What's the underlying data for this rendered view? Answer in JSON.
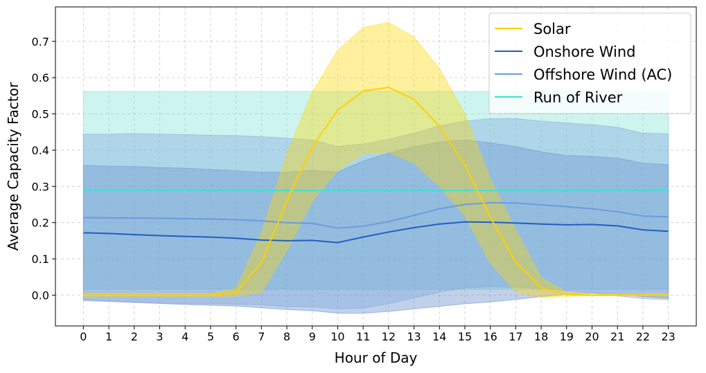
{
  "chart_data": {
    "type": "line",
    "xlabel": "Hour of Day",
    "ylabel": "Average Capacity Factor",
    "xlim": [
      -1.1,
      24.1
    ],
    "ylim": [
      -0.085,
      0.795
    ],
    "x": [
      0,
      1,
      2,
      3,
      4,
      5,
      6,
      7,
      8,
      9,
      10,
      11,
      12,
      13,
      14,
      15,
      16,
      17,
      18,
      19,
      20,
      21,
      22,
      23
    ],
    "yticks": [
      0.0,
      0.1,
      0.2,
      0.3,
      0.4,
      0.5,
      0.6,
      0.7
    ],
    "ytick_labels": [
      "0.0",
      "0.1",
      "0.2",
      "0.3",
      "0.4",
      "0.5",
      "0.6",
      "0.7"
    ],
    "grid": true,
    "legend_position": "top-right",
    "series": [
      {
        "name": "Solar",
        "color": "#FFD000",
        "band_color": "#FFD700",
        "values": [
          0.0,
          0.0,
          0.0,
          0.0,
          0.0,
          0.0,
          0.007,
          0.09,
          0.26,
          0.41,
          0.51,
          0.563,
          0.573,
          0.54,
          0.465,
          0.36,
          0.215,
          0.092,
          0.02,
          0.002,
          0.0,
          0.0,
          0.0,
          0.0
        ],
        "upper": [
          0.005,
          0.005,
          0.005,
          0.005,
          0.005,
          0.005,
          0.018,
          0.17,
          0.39,
          0.56,
          0.675,
          0.738,
          0.752,
          0.712,
          0.625,
          0.5,
          0.32,
          0.18,
          0.048,
          0.008,
          0.003,
          0.003,
          0.003,
          0.003
        ],
        "lower": [
          -0.003,
          -0.003,
          -0.003,
          -0.003,
          -0.003,
          -0.003,
          -0.003,
          0.008,
          0.125,
          0.26,
          0.345,
          0.39,
          0.395,
          0.365,
          0.3,
          0.22,
          0.09,
          0.01,
          -0.006,
          -0.003,
          -0.002,
          -0.002,
          -0.002,
          -0.002
        ]
      },
      {
        "name": "Onshore Wind",
        "color": "#1F5FBF",
        "band_color": "#5B86C8",
        "values": [
          0.172,
          0.17,
          0.167,
          0.164,
          0.162,
          0.16,
          0.157,
          0.152,
          0.15,
          0.151,
          0.145,
          0.16,
          0.174,
          0.186,
          0.196,
          0.202,
          0.201,
          0.199,
          0.196,
          0.194,
          0.195,
          0.191,
          0.18,
          0.176
        ],
        "upper": [
          0.358,
          0.356,
          0.355,
          0.352,
          0.35,
          0.347,
          0.343,
          0.339,
          0.339,
          0.344,
          0.34,
          0.37,
          0.392,
          0.41,
          0.422,
          0.428,
          0.42,
          0.41,
          0.395,
          0.385,
          0.383,
          0.378,
          0.364,
          0.36
        ],
        "lower": [
          -0.013,
          -0.016,
          -0.02,
          -0.023,
          -0.026,
          -0.028,
          -0.03,
          -0.035,
          -0.04,
          -0.043,
          -0.05,
          -0.05,
          -0.045,
          -0.038,
          -0.031,
          -0.024,
          -0.019,
          -0.012,
          -0.004,
          0.002,
          0.006,
          0.004,
          -0.004,
          -0.009
        ]
      },
      {
        "name": "Offshore Wind (AC)",
        "color": "#6A9AE0",
        "band_color": "#7FA6DE",
        "values": [
          0.214,
          0.213,
          0.213,
          0.212,
          0.211,
          0.21,
          0.208,
          0.205,
          0.2,
          0.198,
          0.185,
          0.19,
          0.203,
          0.22,
          0.238,
          0.25,
          0.255,
          0.254,
          0.249,
          0.244,
          0.238,
          0.23,
          0.218,
          0.216
        ],
        "upper": [
          0.444,
          0.444,
          0.446,
          0.444,
          0.443,
          0.441,
          0.44,
          0.437,
          0.433,
          0.428,
          0.41,
          0.417,
          0.43,
          0.447,
          0.467,
          0.48,
          0.487,
          0.487,
          0.48,
          0.475,
          0.47,
          0.463,
          0.447,
          0.445
        ],
        "lower": [
          -0.015,
          -0.018,
          -0.02,
          -0.022,
          -0.023,
          -0.024,
          -0.025,
          -0.027,
          -0.032,
          -0.032,
          -0.038,
          -0.036,
          -0.024,
          -0.008,
          0.008,
          0.02,
          0.023,
          0.022,
          0.018,
          0.012,
          0.006,
          -0.002,
          -0.01,
          -0.013
        ]
      },
      {
        "name": "Run of River",
        "color": "#40E0D0",
        "band_color": "#7FE3D6",
        "values": [
          0.289,
          0.289,
          0.289,
          0.289,
          0.289,
          0.289,
          0.289,
          0.289,
          0.289,
          0.289,
          0.289,
          0.289,
          0.289,
          0.289,
          0.289,
          0.289,
          0.289,
          0.289,
          0.289,
          0.289,
          0.289,
          0.289,
          0.289,
          0.289
        ],
        "upper": [
          0.562,
          0.562,
          0.562,
          0.562,
          0.562,
          0.562,
          0.562,
          0.562,
          0.562,
          0.562,
          0.562,
          0.562,
          0.562,
          0.562,
          0.562,
          0.562,
          0.562,
          0.562,
          0.562,
          0.562,
          0.562,
          0.562,
          0.562,
          0.562
        ],
        "lower": [
          0.016,
          0.016,
          0.016,
          0.016,
          0.016,
          0.016,
          0.016,
          0.016,
          0.016,
          0.016,
          0.016,
          0.016,
          0.016,
          0.016,
          0.016,
          0.016,
          0.016,
          0.016,
          0.016,
          0.016,
          0.016,
          0.016,
          0.016,
          0.016
        ]
      }
    ]
  }
}
